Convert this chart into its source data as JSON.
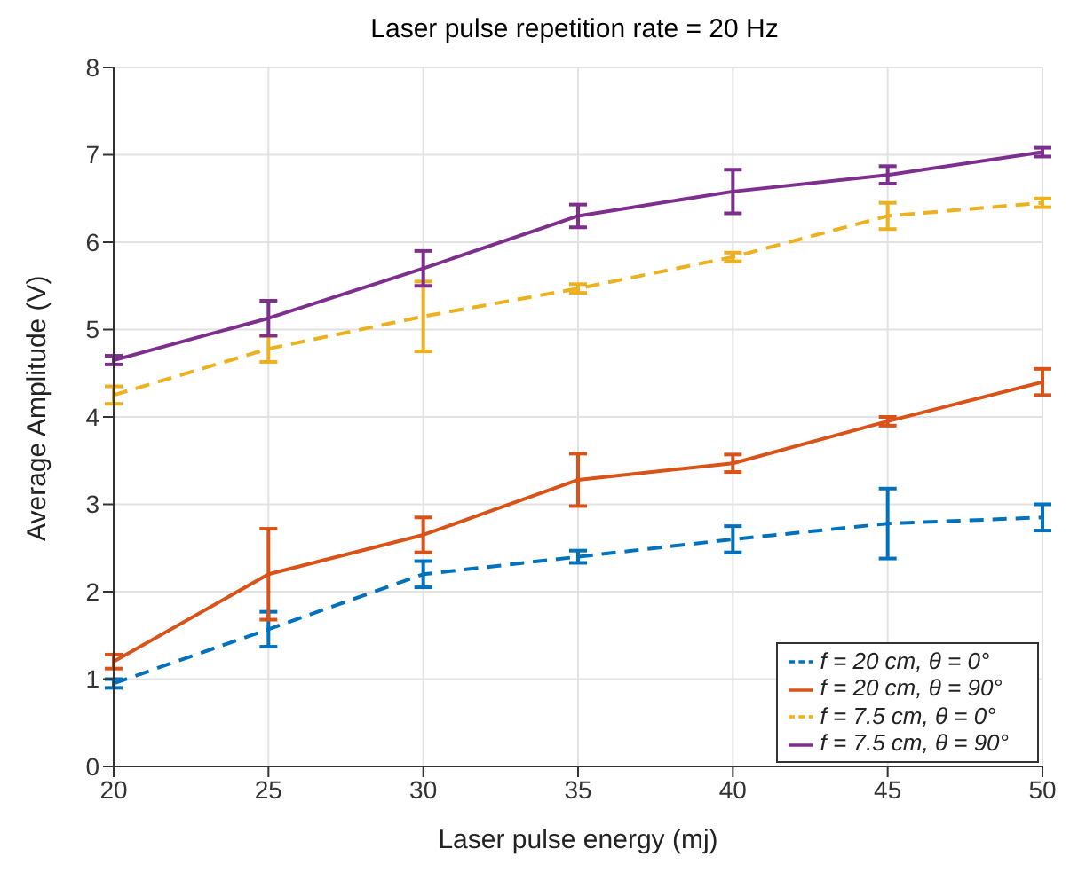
{
  "chart_data": {
    "type": "line",
    "title": "Laser pulse repetition rate = 20 Hz",
    "xlabel": "Laser pulse energy (mj)",
    "ylabel": "Average Amplitude (V)",
    "x": [
      20,
      25,
      30,
      35,
      40,
      45,
      50
    ],
    "series": [
      {
        "name": "f = 20 cm, θ = 0°",
        "color": "#0072bd",
        "line_style": "dashed",
        "values": [
          0.95,
          1.57,
          2.2,
          2.4,
          2.6,
          2.78,
          2.85
        ],
        "errors": [
          0.05,
          0.2,
          0.15,
          0.07,
          0.15,
          0.4,
          0.15
        ]
      },
      {
        "name": "f = 20 cm, θ = 90°",
        "color": "#d95319",
        "line_style": "solid",
        "values": [
          1.2,
          2.2,
          2.65,
          3.28,
          3.47,
          3.95,
          4.4
        ],
        "errors": [
          0.08,
          0.52,
          0.2,
          0.3,
          0.1,
          0.05,
          0.15
        ]
      },
      {
        "name": "f = 7.5 cm, θ = 0°",
        "color": "#edb120",
        "line_style": "dashed",
        "values": [
          4.25,
          4.78,
          5.15,
          5.47,
          5.83,
          6.3,
          6.45
        ],
        "errors": [
          0.1,
          0.15,
          0.4,
          0.05,
          0.05,
          0.15,
          0.05
        ]
      },
      {
        "name": "f = 7.5 cm, θ = 90°",
        "color": "#7e2f8e",
        "line_style": "solid",
        "values": [
          4.65,
          5.13,
          5.7,
          6.3,
          6.58,
          6.77,
          7.03
        ],
        "errors": [
          0.05,
          0.2,
          0.2,
          0.13,
          0.25,
          0.1,
          0.05
        ]
      }
    ],
    "xlim": [
      20,
      50
    ],
    "xticks": [
      20,
      25,
      30,
      35,
      40,
      45,
      50
    ],
    "ylim": [
      0,
      8
    ],
    "yticks": [
      0,
      1,
      2,
      3,
      4,
      5,
      6,
      7,
      8
    ],
    "grid": true,
    "legend": "bottom right",
    "marker": "none"
  }
}
